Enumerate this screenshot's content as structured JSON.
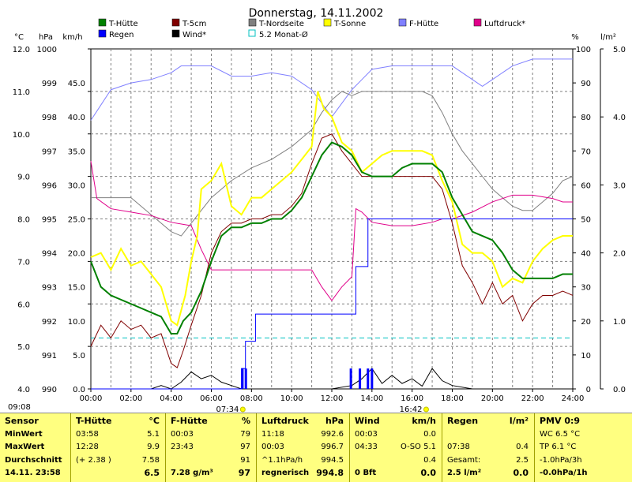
{
  "title": "Donnerstag, 14.11.2002",
  "clock": "09:08",
  "axis_units": {
    "temp": "°C",
    "pressure": "hPa",
    "wind": "km/h",
    "humidity": "%",
    "rain": "l/m²"
  },
  "axes": {
    "temp": [
      "12.0",
      "11.0",
      "10.0",
      "9.0",
      "8.0",
      "7.0",
      "6.0",
      "5.0",
      "4.0"
    ],
    "pressure": [
      "1000",
      "999",
      "998",
      "997",
      "996",
      "995",
      "994",
      "993",
      "992",
      "991",
      "990"
    ],
    "wind": [
      "45.0",
      "40.0",
      "35.0",
      "30.0",
      "25.0",
      "20.0",
      "15.0",
      "10.0",
      "5.0",
      "0.0"
    ],
    "humidity": [
      "100",
      "90",
      "80",
      "70",
      "60",
      "50",
      "40",
      "30",
      "20",
      "10",
      "0"
    ],
    "rain": [
      "5.0",
      "4.0",
      "3.0",
      "2.0",
      "1.0",
      "0.0"
    ],
    "time": [
      "00:00",
      "02:00",
      "04:00",
      "06:00",
      "08:00",
      "10:00",
      "12:00",
      "14:00",
      "16:00",
      "18:00",
      "20:00",
      "22:00",
      "24:00"
    ]
  },
  "markers": {
    "sunrise": "07:34",
    "sunset": "16:42"
  },
  "legend": [
    {
      "label": "T-Hütte",
      "color": "#008000"
    },
    {
      "label": "T-5cm",
      "color": "#800000"
    },
    {
      "label": "T-Nordseite",
      "color": "#808080"
    },
    {
      "label": "T-Sonne",
      "color": "#ffff00"
    },
    {
      "label": "F-Hütte",
      "color": "#8080ff"
    },
    {
      "label": "Luftdruck*",
      "color": "#e0008a"
    },
    {
      "label": "Regen",
      "color": "#0000ff"
    },
    {
      "label": "Wind*",
      "color": "#000000"
    },
    {
      "label": "5.2 Monat-Ø",
      "color": "#00c0c0"
    }
  ],
  "chart_data": {
    "type": "line",
    "title": "Donnerstag, 14.11.2002",
    "xlabel": "",
    "ylabel": "°C",
    "xlim": [
      0,
      24
    ],
    "ylim": [
      4,
      12
    ],
    "secondary_axes": {
      "pressure_hpa": [
        990,
        1000
      ],
      "wind_kmh": [
        0,
        50
      ],
      "humidity_pct": [
        0,
        100
      ],
      "rain_lm2": [
        0,
        5
      ]
    },
    "grid": true,
    "monthly_mean_temp": 5.2,
    "series": [
      {
        "name": "T-Hütte",
        "axis": "temp",
        "color": "#008000",
        "x": [
          0,
          0.5,
          1,
          1.5,
          2,
          2.5,
          3,
          3.5,
          4,
          4.3,
          4.6,
          5,
          5.5,
          6,
          6.5,
          7,
          7.5,
          8,
          8.5,
          9,
          9.5,
          10,
          10.5,
          11,
          11.5,
          12,
          12.5,
          13,
          13.5,
          14,
          14.5,
          15,
          15.5,
          16,
          16.5,
          17,
          17.5,
          18,
          18.5,
          19,
          19.5,
          20,
          20.5,
          21,
          21.5,
          22,
          22.5,
          23,
          23.5,
          24
        ],
        "y": [
          7.0,
          6.4,
          6.2,
          6.1,
          6.0,
          5.9,
          5.8,
          5.7,
          5.3,
          5.3,
          5.6,
          5.8,
          6.3,
          7.0,
          7.6,
          7.8,
          7.8,
          7.9,
          7.9,
          8.0,
          8.0,
          8.2,
          8.5,
          9.0,
          9.5,
          9.8,
          9.7,
          9.5,
          9.1,
          9.0,
          9.0,
          9.0,
          9.2,
          9.3,
          9.3,
          9.3,
          9.1,
          8.5,
          8.1,
          7.7,
          7.6,
          7.5,
          7.2,
          6.8,
          6.6,
          6.6,
          6.6,
          6.6,
          6.7,
          6.7
        ]
      },
      {
        "name": "T-5cm",
        "axis": "temp",
        "color": "#800000",
        "x": [
          0,
          0.5,
          1,
          1.5,
          2,
          2.5,
          3,
          3.5,
          4,
          4.3,
          4.6,
          5,
          5.5,
          6,
          6.5,
          7,
          7.5,
          8,
          8.5,
          9,
          9.5,
          10,
          10.5,
          11,
          11.5,
          12,
          12.5,
          13,
          13.5,
          14,
          14.5,
          15,
          15.5,
          16,
          16.5,
          17,
          17.5,
          18,
          18.5,
          19,
          19.5,
          20,
          20.5,
          21,
          21.5,
          22,
          22.5,
          23,
          23.5,
          24
        ],
        "y": [
          5.0,
          5.5,
          5.2,
          5.6,
          5.4,
          5.5,
          5.2,
          5.3,
          4.6,
          4.5,
          4.9,
          5.5,
          6.2,
          7.2,
          7.7,
          7.9,
          7.9,
          8.0,
          8.0,
          8.1,
          8.1,
          8.3,
          8.6,
          9.3,
          9.9,
          10.0,
          9.6,
          9.3,
          9.0,
          9.0,
          9.0,
          9.0,
          9.0,
          9.0,
          9.0,
          9.0,
          8.7,
          7.9,
          6.9,
          6.5,
          6.0,
          6.5,
          6.0,
          6.2,
          5.6,
          6.0,
          6.2,
          6.2,
          6.3,
          6.2
        ]
      },
      {
        "name": "T-Nordseite",
        "axis": "temp",
        "color": "#808080",
        "x": [
          0,
          1,
          2,
          2.5,
          3,
          3.5,
          4,
          4.5,
          5,
          6,
          7,
          8,
          9,
          10,
          11,
          11.5,
          12,
          12.5,
          13,
          13.5,
          14,
          14.5,
          15,
          15.5,
          16,
          16.5,
          17,
          17.5,
          18,
          18.5,
          19,
          19.5,
          20,
          20.5,
          21,
          21.5,
          22,
          22.5,
          23,
          23.5,
          24
        ],
        "y": [
          8.5,
          8.5,
          8.5,
          8.3,
          8.1,
          7.9,
          7.7,
          7.6,
          7.9,
          8.5,
          8.9,
          9.2,
          9.4,
          9.7,
          10.1,
          10.5,
          10.8,
          11.0,
          10.9,
          11.0,
          11.0,
          11.0,
          11.0,
          11.0,
          11.0,
          11.0,
          10.9,
          10.5,
          10.0,
          9.6,
          9.3,
          9.0,
          8.7,
          8.5,
          8.3,
          8.2,
          8.2,
          8.4,
          8.6,
          8.9,
          9.0
        ]
      },
      {
        "name": "T-Sonne",
        "axis": "temp",
        "color": "#ffff00",
        "x": [
          0,
          0.5,
          1,
          1.5,
          2,
          2.5,
          3,
          3.5,
          4,
          4.3,
          4.7,
          5,
          5.3,
          5.5,
          6,
          6.5,
          7,
          7.5,
          8,
          8.5,
          9,
          9.5,
          10,
          10.5,
          11,
          11.3,
          11.6,
          12,
          12.5,
          13,
          13.5,
          14,
          14.5,
          15,
          15.5,
          16,
          16.5,
          17,
          17.5,
          18,
          18.5,
          19,
          19.5,
          20,
          20.5,
          21,
          21.5,
          22,
          22.5,
          23,
          23.5,
          24
        ],
        "y": [
          7.1,
          7.2,
          6.8,
          7.3,
          6.9,
          7.0,
          6.7,
          6.4,
          5.6,
          5.5,
          6.2,
          7.0,
          7.6,
          8.7,
          8.9,
          9.3,
          8.3,
          8.1,
          8.5,
          8.5,
          8.7,
          8.9,
          9.1,
          9.4,
          9.7,
          11.0,
          10.6,
          10.4,
          9.8,
          9.6,
          9.1,
          9.3,
          9.5,
          9.6,
          9.6,
          9.6,
          9.6,
          9.5,
          8.9,
          8.4,
          7.4,
          7.2,
          7.2,
          7.0,
          6.4,
          6.6,
          6.5,
          7.0,
          7.3,
          7.5,
          7.6,
          7.6
        ]
      },
      {
        "name": "F-Hütte",
        "axis": "humidity",
        "color": "#8080ff",
        "x": [
          0,
          1,
          2,
          3,
          4,
          4.5,
          5,
          6,
          7,
          8,
          9,
          10,
          11,
          11.5,
          12,
          12.5,
          13,
          13.5,
          14,
          15,
          16,
          17,
          18,
          18.5,
          19,
          19.5,
          20,
          21,
          22,
          22.5,
          23,
          23.5,
          24
        ],
        "y": [
          79,
          88,
          90,
          91,
          93,
          95,
          95,
          95,
          92,
          92,
          93,
          92,
          88,
          84,
          80,
          84,
          88,
          91,
          94,
          95,
          95,
          95,
          95,
          93,
          91,
          89,
          91,
          95,
          97,
          97,
          97,
          97,
          97
        ]
      },
      {
        "name": "Luftdruck*",
        "axis": "pressure",
        "color": "#e0008a",
        "x": [
          0,
          0.3,
          1,
          2,
          3,
          4,
          5,
          5.5,
          6,
          7,
          8,
          9,
          10,
          11,
          11.5,
          12,
          12.5,
          13,
          13.2,
          13.5,
          14,
          15,
          16,
          17,
          17.5,
          18,
          19,
          20,
          21,
          22,
          23,
          23.5,
          24
        ],
        "y": [
          996.7,
          995.6,
          995.3,
          995.2,
          995.1,
          994.9,
          994.8,
          994.1,
          993.5,
          993.5,
          993.5,
          993.5,
          993.5,
          993.5,
          993.0,
          992.6,
          993.0,
          993.3,
          995.3,
          995.2,
          994.9,
          994.8,
          994.8,
          994.9,
          995.0,
          995.0,
          995.2,
          995.5,
          995.7,
          995.7,
          995.6,
          995.5,
          995.5
        ]
      },
      {
        "name": "Wind*",
        "axis": "wind",
        "color": "#000000",
        "x": [
          0,
          1,
          2,
          3,
          3.5,
          4,
          4.5,
          5,
          5.5,
          6,
          6.5,
          7,
          7.5,
          8,
          9,
          10,
          11,
          12,
          13,
          13.5,
          14,
          14.5,
          15,
          15.5,
          16,
          16.5,
          17,
          17.5,
          18,
          19,
          20,
          21,
          22,
          23,
          24
        ],
        "y": [
          0,
          0,
          0,
          0,
          0.5,
          0,
          1,
          2.5,
          1.5,
          2,
          1,
          0.5,
          0,
          0,
          0,
          0,
          0,
          0,
          0.5,
          1.5,
          3,
          0.8,
          2,
          0.8,
          1.5,
          0.4,
          3,
          1.2,
          0.5,
          0,
          0,
          0,
          0,
          0,
          0
        ]
      },
      {
        "name": "Regen",
        "axis": "rain",
        "color": "#0000ff",
        "x": [
          0,
          7.45,
          7.5,
          7.7,
          8.2,
          9,
          10,
          11,
          12,
          12.8,
          13.2,
          13.8,
          14,
          16,
          20,
          24
        ],
        "y": [
          0,
          0,
          0.3,
          0.7,
          1.1,
          1.1,
          1.1,
          1.1,
          1.1,
          1.1,
          1.8,
          2.5,
          2.5,
          2.5,
          2.5,
          2.5
        ]
      }
    ],
    "rain_bars": {
      "x": [
        7.55,
        7.72,
        12.95,
        13.4,
        13.8,
        14.0
      ],
      "values": [
        0.3,
        0.3,
        0.3,
        0.3,
        0.3,
        0.3
      ]
    }
  },
  "table": {
    "columns": [
      {
        "head": "Sensor",
        "unit": "",
        "rows": [
          [
            "MinWert",
            "",
            ""
          ],
          [
            "MaxWert",
            "",
            ""
          ],
          [
            "Durchschnitt",
            "",
            ""
          ]
        ],
        "current": [
          "14.11. 23:58",
          "",
          ""
        ]
      },
      {
        "head": "T-Hütte",
        "unit": "°C",
        "rows": [
          [
            "03:58",
            "5.1"
          ],
          [
            "12:28",
            "9.9"
          ],
          [
            "(+ 2.38 )",
            "7.58"
          ]
        ],
        "current": [
          "",
          "6.5"
        ]
      },
      {
        "head": "F-Hütte",
        "unit": "%",
        "rows": [
          [
            "00:03",
            "79"
          ],
          [
            "23:43",
            "97"
          ],
          [
            "",
            "91"
          ]
        ],
        "current": [
          "7.28 g/m³",
          "97"
        ]
      },
      {
        "head": "Luftdruck",
        "unit": "hPa",
        "rows": [
          [
            "11:18",
            "992.6"
          ],
          [
            "00:03",
            "996.7"
          ],
          [
            "^1.1hPa/h",
            "994.5"
          ]
        ],
        "current": [
          "regnerisch",
          "994.8"
        ]
      },
      {
        "head": "Wind",
        "unit": "km/h",
        "rows": [
          [
            "00:03",
            "0.0"
          ],
          [
            "04:33",
            "O-SO 5.1"
          ],
          [
            "",
            "0.4"
          ]
        ],
        "current": [
          "0 Bft",
          "0.0"
        ]
      },
      {
        "head": "Regen",
        "unit": "l/m²",
        "rows": [
          [
            "",
            ""
          ],
          [
            "07:38",
            "0.4"
          ],
          [
            "Gesamt:",
            "2.5"
          ]
        ],
        "current": [
          "2.5 l/m²",
          "0.0"
        ]
      },
      {
        "head": "PMV 0:9",
        "unit": "",
        "rows": [
          [
            "WC 6.5 °C",
            ""
          ],
          [
            "TP 6.1 °C",
            ""
          ],
          [
            "-1.0hPa/3h",
            ""
          ]
        ],
        "current": [
          "-0.0hPa/1h",
          ""
        ]
      }
    ]
  }
}
